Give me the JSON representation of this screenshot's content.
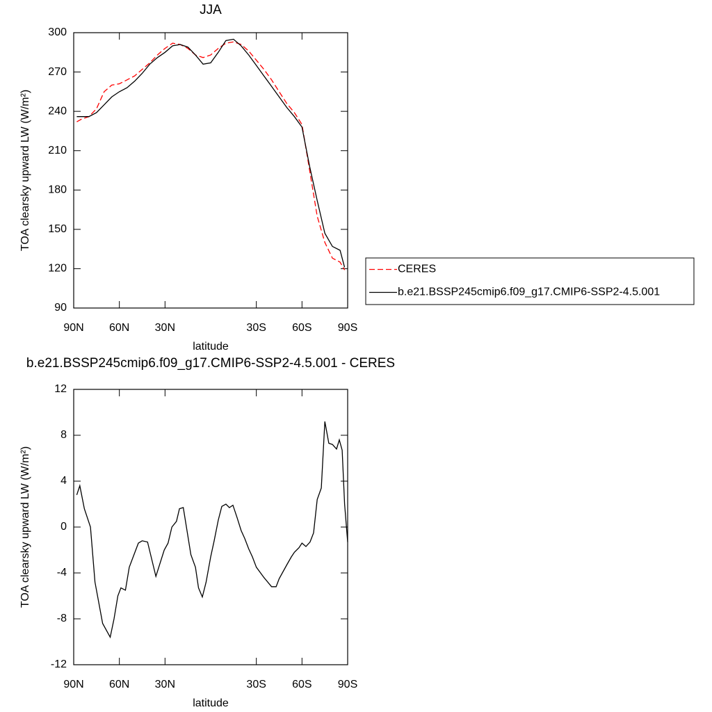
{
  "chart_data": [
    {
      "type": "line",
      "title": "JJA",
      "x_label": "latitude",
      "y_label": "TOA clearsky upward LW (W/m²)",
      "x": [
        88,
        85,
        80,
        75,
        70,
        65,
        60,
        55,
        50,
        45,
        40,
        35,
        30,
        25,
        20,
        15,
        10,
        5,
        0,
        -5,
        -10,
        -15,
        -20,
        -25,
        -30,
        -35,
        -40,
        -45,
        -50,
        -55,
        -60,
        -65,
        -70,
        -75,
        -80,
        -85,
        -88
      ],
      "series": [
        {
          "name": "CERES",
          "color": "#ff0000",
          "style": "dashed",
          "values": [
            232,
            234,
            236,
            242,
            255,
            260,
            261,
            264,
            267,
            272,
            277,
            283,
            288,
            292,
            291,
            288,
            283,
            281,
            283,
            288,
            292,
            293,
            291,
            286,
            279,
            272,
            264,
            255,
            246,
            239,
            230,
            195,
            160,
            140,
            128,
            125,
            119
          ]
        },
        {
          "name": "b.e21.BSSP245cmip6.f09_g17.CMIP6-SSP2-4.5.001",
          "color": "#000000",
          "style": "solid",
          "values": [
            236,
            236,
            236,
            239,
            245,
            251,
            255,
            258,
            263,
            269,
            276,
            281,
            285,
            290,
            291,
            289,
            283,
            276,
            277,
            285,
            294,
            295,
            290,
            283,
            275,
            267,
            259,
            251,
            243,
            236,
            228,
            198,
            172,
            147,
            137,
            134,
            121
          ]
        }
      ],
      "xlim": [
        90,
        -90
      ],
      "xticks": [
        {
          "value": 90,
          "label": "90N"
        },
        {
          "value": 60,
          "label": "60N"
        },
        {
          "value": 30,
          "label": "30N"
        },
        {
          "value": -30,
          "label": "30S"
        },
        {
          "value": -60,
          "label": "60S"
        },
        {
          "value": -90,
          "label": "90S"
        }
      ],
      "ylim": [
        90,
        300
      ],
      "yticks": [
        90,
        120,
        150,
        180,
        210,
        240,
        270,
        300
      ],
      "legend": "right"
    },
    {
      "type": "line",
      "title": "b.e21.BSSP245cmip6.f09_g17.CMIP6-SSP2-4.5.001 - CERES",
      "x_label": "latitude",
      "y_label": "TOA clearsky upward LW (W/m²)",
      "x": [
        88,
        86,
        83,
        79,
        76,
        71,
        66,
        63.5,
        61,
        59,
        56,
        53.5,
        47.5,
        45,
        41.5,
        36,
        30.5,
        28,
        25.5,
        22.5,
        20.5,
        18,
        13,
        10,
        8,
        5.5,
        3,
        0,
        -2.3,
        -5,
        -7.3,
        -10,
        -12.3,
        -14.6,
        -17.4,
        -20,
        -22.4,
        -25,
        -27.4,
        -30,
        -35,
        -40,
        -43,
        -45,
        -50,
        -53,
        -55,
        -58,
        -60,
        -62.6,
        -65.3,
        -67.6,
        -70,
        -72.7,
        -75,
        -77.6,
        -80,
        -82.7,
        -84.5,
        -86.4,
        -88,
        -90
      ],
      "series": [
        {
          "name": "b.e21.BSSP245cmip6.f09_g17.CMIP6-SSP2-4.5.001 - CERES",
          "color": "#000000",
          "style": "solid",
          "values": [
            2.8,
            3.6,
            1.6,
            0,
            -4.8,
            -8.4,
            -9.6,
            -8,
            -6,
            -5.3,
            -5.5,
            -3.5,
            -1.4,
            -1.2,
            -1.3,
            -4.3,
            -2,
            -1.4,
            0,
            0.5,
            1.6,
            1.7,
            -2.4,
            -3.5,
            -5.3,
            -6.1,
            -4.8,
            -2.6,
            -1.2,
            0.6,
            1.8,
            2,
            1.7,
            1.9,
            0.8,
            -0.3,
            -1,
            -1.9,
            -2.6,
            -3.5,
            -4.4,
            -5.2,
            -5.2,
            -4.5,
            -3.3,
            -2.6,
            -2.2,
            -1.8,
            -1.4,
            -1.7,
            -1.3,
            -0.5,
            2.4,
            3.4,
            9.2,
            7.3,
            7.2,
            6.8,
            7.6,
            6.7,
            2,
            -1.3
          ]
        }
      ],
      "xlim": [
        90,
        -90
      ],
      "xticks": [
        {
          "value": 90,
          "label": "90N"
        },
        {
          "value": 60,
          "label": "60N"
        },
        {
          "value": 30,
          "label": "30N"
        },
        {
          "value": -30,
          "label": "30S"
        },
        {
          "value": -60,
          "label": "60S"
        },
        {
          "value": -90,
          "label": "90S"
        }
      ],
      "ylim": [
        -12,
        12
      ],
      "yticks": [
        -12,
        -8,
        -4,
        0,
        4,
        8,
        12
      ]
    }
  ]
}
